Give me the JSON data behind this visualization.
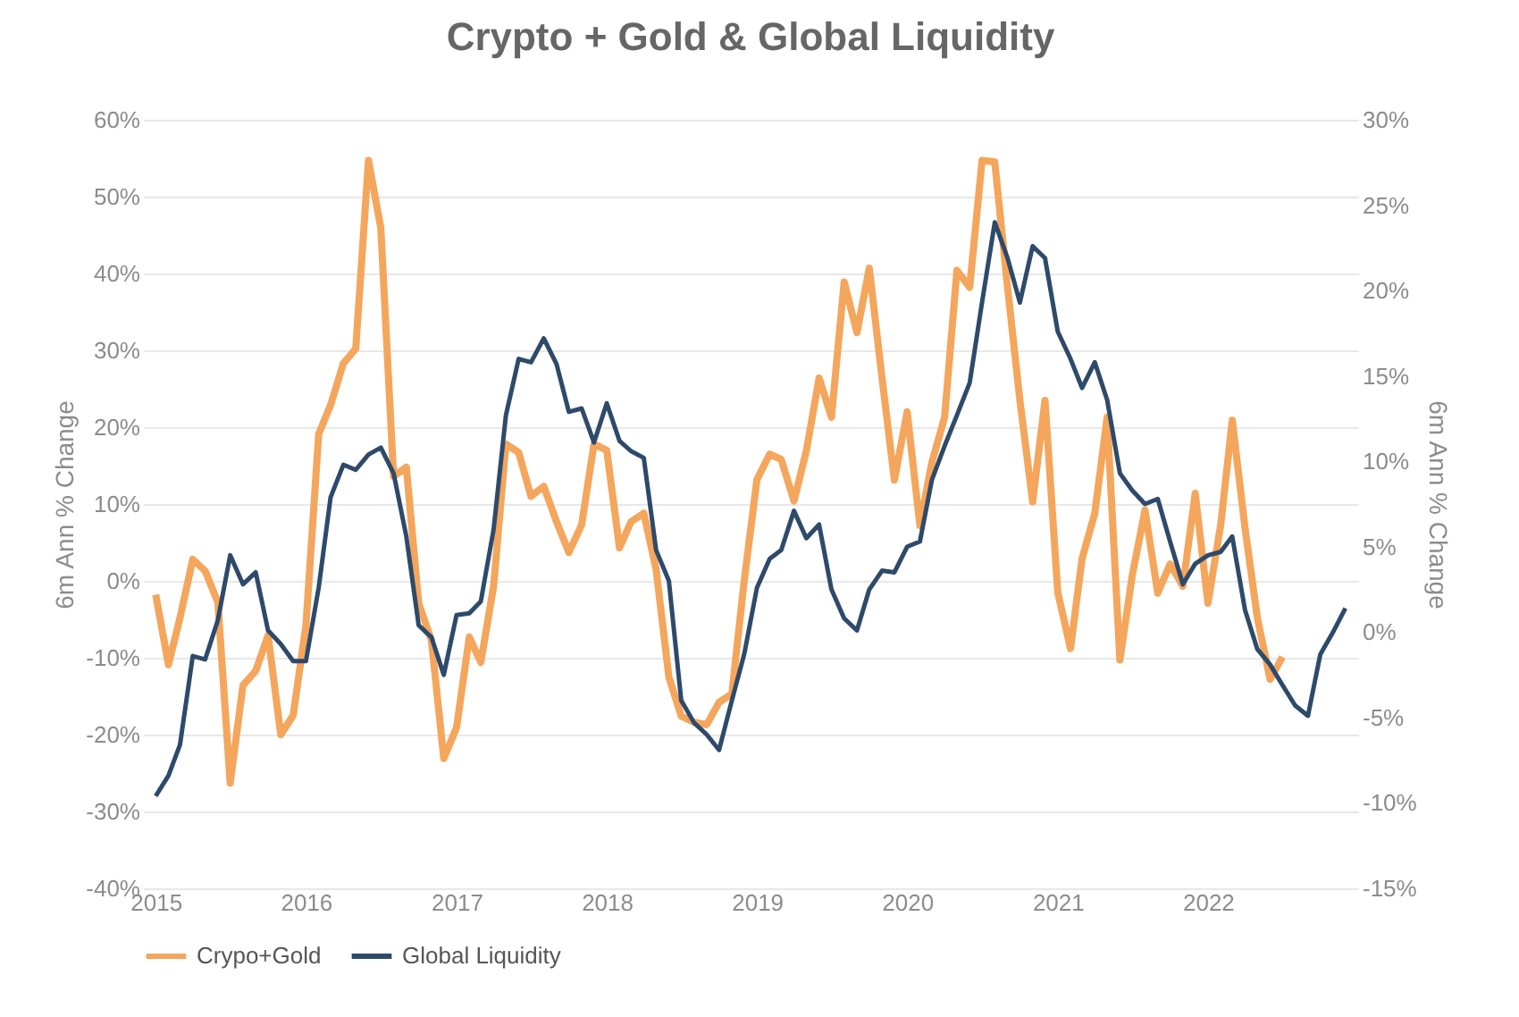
{
  "chart_data": {
    "type": "line",
    "title": "Crypto + Gold & Global Liquidity",
    "ylabel": "6m Ann % Change",
    "y2label": "6m Ann % Change",
    "x": [
      "2015-01",
      "2015-02",
      "2015-03",
      "2015-04",
      "2015-05",
      "2015-06",
      "2015-07",
      "2015-08",
      "2015-09",
      "2015-10",
      "2015-11",
      "2015-12",
      "2016-01",
      "2016-02",
      "2016-03",
      "2016-04",
      "2016-05",
      "2016-06",
      "2016-07",
      "2016-08",
      "2016-09",
      "2016-10",
      "2016-11",
      "2016-12",
      "2017-01",
      "2017-02",
      "2017-03",
      "2017-04",
      "2017-05",
      "2017-06",
      "2017-07",
      "2017-08",
      "2017-09",
      "2017-10",
      "2017-11",
      "2017-12",
      "2018-01",
      "2018-02",
      "2018-03",
      "2018-04",
      "2018-05",
      "2018-06",
      "2018-07",
      "2018-08",
      "2018-09",
      "2018-10",
      "2018-11",
      "2018-12",
      "2019-01",
      "2019-02",
      "2019-03",
      "2019-04",
      "2019-05",
      "2019-06",
      "2019-07",
      "2019-08",
      "2019-09",
      "2019-10",
      "2019-11",
      "2019-12",
      "2020-01",
      "2020-02",
      "2020-03",
      "2020-04",
      "2020-05",
      "2020-06",
      "2020-07",
      "2020-08",
      "2020-09",
      "2020-10",
      "2020-11",
      "2020-12",
      "2021-01",
      "2021-02",
      "2021-03",
      "2021-04",
      "2021-05",
      "2021-06",
      "2021-07",
      "2021-08",
      "2021-09",
      "2021-10",
      "2021-11",
      "2021-12",
      "2022-01",
      "2022-02",
      "2022-03",
      "2022-04",
      "2022-05",
      "2022-06",
      "2022-07",
      "2022-08",
      "2022-09",
      "2022-10",
      "2022-11",
      "2022-12"
    ],
    "xlim": [
      "2014-12",
      "2023-01"
    ],
    "xticks": [
      {
        "value": "2015-01",
        "label": "2015"
      },
      {
        "value": "2016-01",
        "label": "2016"
      },
      {
        "value": "2017-01",
        "label": "2017"
      },
      {
        "value": "2018-01",
        "label": "2018"
      },
      {
        "value": "2019-01",
        "label": "2019"
      },
      {
        "value": "2020-01",
        "label": "2020"
      },
      {
        "value": "2021-01",
        "label": "2021"
      },
      {
        "value": "2022-01",
        "label": "2022"
      }
    ],
    "ylim": [
      -40,
      60
    ],
    "yticks": [
      {
        "value": -40,
        "label": "-40%"
      },
      {
        "value": -30,
        "label": "-30%"
      },
      {
        "value": -20,
        "label": "-20%"
      },
      {
        "value": -10,
        "label": "-10%"
      },
      {
        "value": 0,
        "label": "0%"
      },
      {
        "value": 10,
        "label": "10%"
      },
      {
        "value": 20,
        "label": "20%"
      },
      {
        "value": 30,
        "label": "30%"
      },
      {
        "value": 40,
        "label": "40%"
      },
      {
        "value": 50,
        "label": "50%"
      },
      {
        "value": 60,
        "label": "60%"
      }
    ],
    "y2lim": [
      -15,
      30
    ],
    "y2ticks": [
      {
        "value": -15,
        "label": "-15%"
      },
      {
        "value": -10,
        "label": "-10%"
      },
      {
        "value": -5,
        "label": "-5%"
      },
      {
        "value": 0,
        "label": "0%"
      },
      {
        "value": 5,
        "label": "5%"
      },
      {
        "value": 10,
        "label": "10%"
      },
      {
        "value": 15,
        "label": "15%"
      },
      {
        "value": 20,
        "label": "20%"
      },
      {
        "value": 25,
        "label": "25%"
      },
      {
        "value": 30,
        "label": "30%"
      }
    ],
    "grid": "y",
    "legend": "bottom",
    "series": [
      {
        "name": "Crypo+Gold",
        "color": "#f4a65c",
        "values": [
          -1.8,
          -10.9,
          -4.8,
          2.8,
          1.3,
          -2.8,
          -26.3,
          -13.6,
          -11.7,
          -7.1,
          -20,
          -17.5,
          -5.8,
          19.1,
          22.9,
          28.3,
          30.2,
          54.7,
          45.9,
          13.6,
          14.8,
          -2.9,
          -7.7,
          -23.1,
          -19.1,
          -7.3,
          -10.6,
          -0.7,
          17.8,
          16.7,
          11,
          12.3,
          7.7,
          3.7,
          7.3,
          17.8,
          17,
          4.3,
          7.7,
          8.8,
          1.5,
          -12.5,
          -17.6,
          -18.4,
          -18.7,
          -15.8,
          -14.7,
          0,
          13.2,
          16.5,
          15.8,
          10.4,
          16.9,
          26.4,
          21.3,
          38.9,
          32.3,
          40.7,
          26.4,
          13.1,
          22,
          7.2,
          15.4,
          21.3,
          40.4,
          38.2,
          54.7,
          54.5,
          38.2,
          23.5,
          10.3,
          23.5,
          -1.5,
          -8.8,
          2.9,
          8.8,
          21.3,
          -10.3,
          0.7,
          9.2,
          -1.6,
          2.2,
          -0.7,
          11.4,
          -2.9,
          7.3,
          20.9,
          6.9,
          -4.8,
          -12.8,
          -9.9,
          null,
          null,
          null,
          null,
          null
        ]
      },
      {
        "name": "Global Liquidity",
        "color": "#2e4a6b",
        "axis": "y2",
        "values": [
          -9.6,
          -8.4,
          -6.6,
          -1.4,
          -1.6,
          0.7,
          4.5,
          2.8,
          3.5,
          0.1,
          -0.7,
          -1.7,
          -1.7,
          2.6,
          7.9,
          9.8,
          9.5,
          10.4,
          10.8,
          9.3,
          5.6,
          0.4,
          -0.3,
          -2.5,
          1.0,
          1.1,
          1.8,
          6.0,
          12.7,
          16.0,
          15.8,
          17.2,
          15.7,
          12.9,
          13.1,
          11.1,
          13.4,
          11.2,
          10.6,
          10.2,
          4.8,
          3.0,
          -4.0,
          -5.3,
          -6.0,
          -6.9,
          -4.0,
          -1.3,
          2.6,
          4.3,
          4.8,
          7.1,
          5.5,
          6.3,
          2.5,
          0.8,
          0.1,
          2.5,
          3.6,
          3.5,
          5.0,
          5.3,
          8.9,
          10.9,
          12.7,
          14.6,
          19.3,
          24.0,
          21.9,
          19.3,
          22.6,
          21.9,
          17.6,
          16.0,
          14.3,
          15.8,
          13.6,
          9.3,
          8.3,
          7.5,
          7.8,
          5.3,
          2.8,
          4.0,
          4.5,
          4.7,
          5.6,
          1.3,
          -1.0,
          -1.9,
          -3.1,
          -4.3,
          -4.9,
          -1.3,
          0,
          1.4
        ]
      }
    ]
  }
}
